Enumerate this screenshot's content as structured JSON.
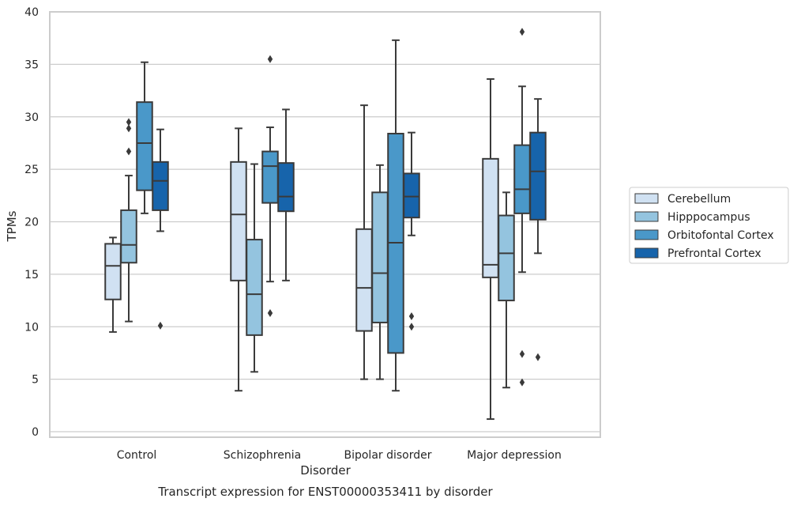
{
  "chart_data": {
    "type": "box",
    "caption": "Transcript expression for ENST00000353411 by disorder",
    "xlabel": "Disorder",
    "ylabel": "TPMs",
    "ylim": [
      -0.5,
      40
    ],
    "yticks": [
      0,
      5,
      10,
      15,
      20,
      25,
      30,
      35,
      40
    ],
    "grid": "horizontal",
    "legend_position": "right",
    "categories": [
      "Control",
      "Schizophrenia",
      "Bipolar disorder",
      "Major depression"
    ],
    "series": [
      {
        "name": "Cerebellum",
        "color": "#d0e1f2",
        "boxes": [
          {
            "whislo": 9.5,
            "q1": 12.6,
            "med": 15.8,
            "q3": 17.9,
            "whishi": 18.5,
            "fliers": []
          },
          {
            "whislo": 3.9,
            "q1": 14.4,
            "med": 20.7,
            "q3": 25.7,
            "whishi": 28.9,
            "fliers": []
          },
          {
            "whislo": 5.0,
            "q1": 9.6,
            "med": 13.7,
            "q3": 19.3,
            "whishi": 31.1,
            "fliers": []
          },
          {
            "whislo": 1.2,
            "q1": 14.7,
            "med": 15.9,
            "q3": 26.0,
            "whishi": 33.6,
            "fliers": []
          }
        ]
      },
      {
        "name": "Hipppocampus",
        "color": "#94c4df",
        "boxes": [
          {
            "whislo": 10.5,
            "q1": 16.1,
            "med": 17.8,
            "q3": 21.1,
            "whishi": 24.4,
            "fliers": [
              26.7,
              28.9,
              29.5
            ]
          },
          {
            "whislo": 5.7,
            "q1": 9.2,
            "med": 13.1,
            "q3": 18.3,
            "whishi": 25.5,
            "fliers": []
          },
          {
            "whislo": 5.0,
            "q1": 10.4,
            "med": 15.1,
            "q3": 22.8,
            "whishi": 25.4,
            "fliers": []
          },
          {
            "whislo": 4.2,
            "q1": 12.5,
            "med": 17.0,
            "q3": 20.6,
            "whishi": 22.8,
            "fliers": []
          }
        ]
      },
      {
        "name": "Orbitofontal Cortex",
        "color": "#4a98c9",
        "boxes": [
          {
            "whislo": 20.8,
            "q1": 23.0,
            "med": 27.5,
            "q3": 31.4,
            "whishi": 35.2,
            "fliers": []
          },
          {
            "whislo": 14.3,
            "q1": 21.8,
            "med": 25.3,
            "q3": 26.7,
            "whishi": 29.0,
            "fliers": [
              11.3,
              35.5
            ]
          },
          {
            "whislo": 3.9,
            "q1": 7.5,
            "med": 18.0,
            "q3": 28.4,
            "whishi": 37.3,
            "fliers": []
          },
          {
            "whislo": 15.2,
            "q1": 20.8,
            "med": 23.1,
            "q3": 27.3,
            "whishi": 32.9,
            "fliers": [
              4.7,
              7.4,
              38.1
            ]
          }
        ]
      },
      {
        "name": "Prefrontal Cortex",
        "color": "#1764ab",
        "boxes": [
          {
            "whislo": 19.1,
            "q1": 21.1,
            "med": 23.9,
            "q3": 25.7,
            "whishi": 28.8,
            "fliers": [
              10.1
            ]
          },
          {
            "whislo": 14.4,
            "q1": 21.0,
            "med": 22.4,
            "q3": 25.6,
            "whishi": 30.7,
            "fliers": []
          },
          {
            "whislo": 18.7,
            "q1": 20.4,
            "med": 22.4,
            "q3": 24.6,
            "whishi": 28.5,
            "fliers": [
              10.0,
              11.0
            ]
          },
          {
            "whislo": 17.0,
            "q1": 20.2,
            "med": 24.8,
            "q3": 28.5,
            "whishi": 31.7,
            "fliers": [
              7.1
            ]
          }
        ]
      }
    ]
  }
}
